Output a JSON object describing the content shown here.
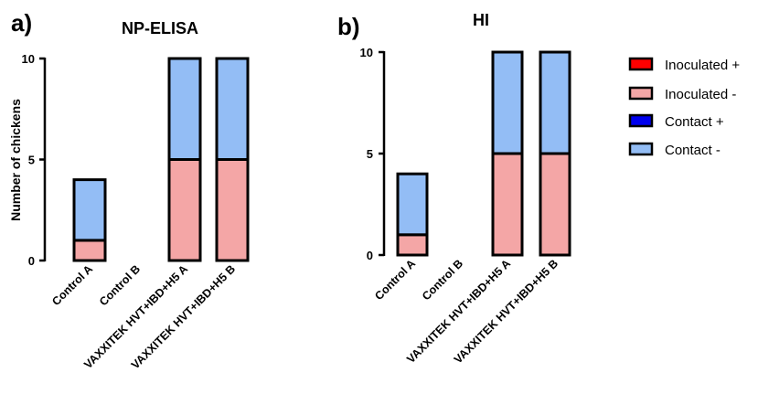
{
  "figure": {
    "panels": [
      "a)",
      "b)"
    ]
  },
  "legend": [
    {
      "label": "Inoculated +",
      "color": "#ff0000"
    },
    {
      "label": "Inoculated -",
      "color": "#f4a6a6"
    },
    {
      "label": "Contact +",
      "color": "#0000ee"
    },
    {
      "label": "Contact -",
      "color": "#93bdf5"
    }
  ],
  "chart_data": [
    {
      "type": "bar",
      "stacked": true,
      "title": "NP-ELISA",
      "ylabel": "Number of chickens",
      "xlabel": "",
      "ylim": [
        0,
        10
      ],
      "yticks": [
        0,
        5,
        10
      ],
      "categories": [
        "Control A",
        "Control B",
        "VAXXITEK HVT+IBD+H5 A",
        "VAXXITEK HVT+IBD+H5 B"
      ],
      "series": [
        {
          "name": "Inoculated +",
          "values": [
            0,
            0,
            0,
            0
          ]
        },
        {
          "name": "Inoculated -",
          "values": [
            1,
            0,
            5,
            5
          ]
        },
        {
          "name": "Contact +",
          "values": [
            0,
            0,
            0,
            0
          ]
        },
        {
          "name": "Contact -",
          "values": [
            3,
            0,
            5,
            5
          ]
        }
      ]
    },
    {
      "type": "bar",
      "stacked": true,
      "title": "HI",
      "ylabel": "",
      "xlabel": "",
      "ylim": [
        0,
        10
      ],
      "yticks": [
        0,
        5,
        10
      ],
      "categories": [
        "Control A",
        "Control B",
        "VAXXITEK HVT+IBD+H5 A",
        "VAXXITEK HVT+IBD+H5 B"
      ],
      "series": [
        {
          "name": "Inoculated +",
          "values": [
            0,
            0,
            0,
            0
          ]
        },
        {
          "name": "Inoculated -",
          "values": [
            1,
            0,
            5,
            5
          ]
        },
        {
          "name": "Contact +",
          "values": [
            0,
            0,
            0,
            0
          ]
        },
        {
          "name": "Contact -",
          "values": [
            3,
            0,
            5,
            5
          ]
        }
      ]
    }
  ]
}
